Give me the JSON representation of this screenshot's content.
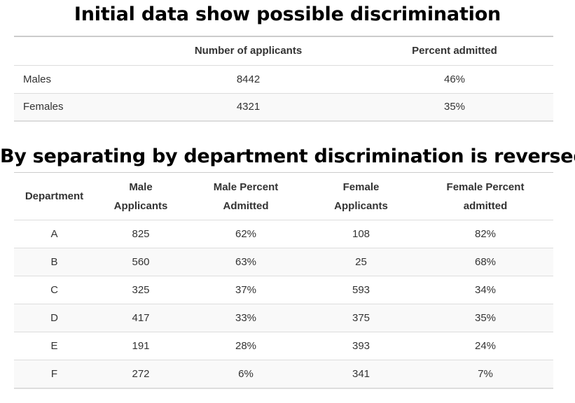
{
  "title1": "Initial data show possible discrimination",
  "table1": {
    "headers": [
      "",
      "Number of applicants",
      "Percent admitted"
    ],
    "rows": [
      [
        "Males",
        "8442",
        "46%"
      ],
      [
        "Females",
        "4321",
        "35%"
      ]
    ]
  },
  "title2": "By separating by department discrimination is reversed",
  "table2": {
    "headers": [
      [
        "Department"
      ],
      [
        "Male",
        "Applicants"
      ],
      [
        "Male Percent",
        "Admitted"
      ],
      [
        "Female",
        "Applicants"
      ],
      [
        "Female Percent",
        "admitted"
      ]
    ],
    "rows": [
      [
        "A",
        "825",
        "62%",
        "108",
        "82%"
      ],
      [
        "B",
        "560",
        "63%",
        "25",
        "68%"
      ],
      [
        "C",
        "325",
        "37%",
        "593",
        "34%"
      ],
      [
        "D",
        "417",
        "33%",
        "375",
        "35%"
      ],
      [
        "E",
        "191",
        "28%",
        "393",
        "24%"
      ],
      [
        "F",
        "272",
        "6%",
        "341",
        "7%"
      ]
    ]
  },
  "colors": {
    "title_text": "#000000",
    "body_text": "#333333",
    "row_stripe": "#f9f9f9",
    "rule": "#dddddd"
  }
}
